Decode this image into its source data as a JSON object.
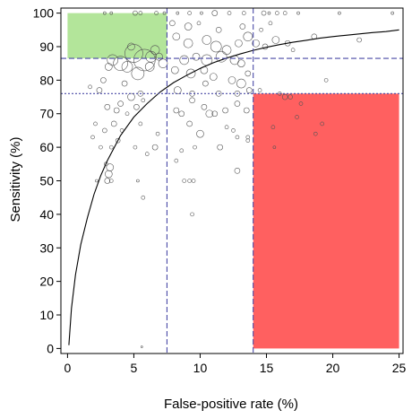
{
  "chart_data": {
    "type": "scatter",
    "title": "",
    "xlabel": "False-positive rate (%)",
    "ylabel": "Sensitivity (%)",
    "xlim": [
      0,
      25
    ],
    "ylim": [
      0,
      100
    ],
    "xticks": [
      0,
      5,
      10,
      15,
      20,
      25
    ],
    "yticks": [
      0,
      10,
      20,
      30,
      40,
      50,
      60,
      70,
      80,
      90,
      100
    ],
    "grid": false,
    "regions": [
      {
        "name": "green",
        "x": [
          0,
          7.5
        ],
        "y": [
          86.5,
          100
        ],
        "color": "#b3e59a"
      },
      {
        "name": "red",
        "x": [
          14,
          25
        ],
        "y": [
          0,
          76
        ],
        "color": "#ff6060"
      }
    ],
    "reference_lines": [
      {
        "orientation": "vertical",
        "value": 7.5,
        "color": "#4a4aa6",
        "style": "dashed"
      },
      {
        "orientation": "vertical",
        "value": 14,
        "color": "#4a4aa6",
        "style": "dashed"
      },
      {
        "orientation": "horizontal",
        "value": 86.5,
        "color": "#4a4aa6",
        "style": "dashed"
      },
      {
        "orientation": "horizontal",
        "value": 76,
        "color": "#4a4aa6",
        "style": "dotted"
      }
    ],
    "curve": {
      "color": "#000000",
      "x": [
        0.1,
        0.3,
        0.6,
        1,
        1.5,
        2,
        2.5,
        3,
        4,
        5,
        6,
        7,
        8,
        9,
        10,
        11,
        12,
        13,
        14,
        15,
        16,
        17,
        18,
        19,
        20,
        21,
        22,
        23,
        24,
        25
      ],
      "y": [
        1,
        12,
        22,
        31,
        39,
        46,
        51.5,
        56,
        63.5,
        69,
        73,
        76.5,
        79.3,
        81.5,
        83.5,
        85.2,
        86.6,
        87.8,
        88.9,
        89.8,
        90.6,
        91.3,
        91.9,
        92.5,
        93,
        93.4,
        93.8,
        94.2,
        94.5,
        95
      ]
    },
    "points": [
      {
        "x": 2.2,
        "y": 50,
        "s": 1.5
      },
      {
        "x": 2.5,
        "y": 60,
        "s": 2
      },
      {
        "x": 2.8,
        "y": 65,
        "s": 2.5
      },
      {
        "x": 3.0,
        "y": 50,
        "s": 3
      },
      {
        "x": 3.1,
        "y": 52,
        "s": 4
      },
      {
        "x": 3.3,
        "y": 60,
        "s": 2
      },
      {
        "x": 3.5,
        "y": 67,
        "s": 3
      },
      {
        "x": 3.0,
        "y": 72,
        "s": 3
      },
      {
        "x": 3.2,
        "y": 54,
        "s": 4
      },
      {
        "x": 2.4,
        "y": 77,
        "s": 3
      },
      {
        "x": 2.1,
        "y": 67,
        "s": 2
      },
      {
        "x": 1.9,
        "y": 63,
        "s": 2
      },
      {
        "x": 1.7,
        "y": 78,
        "s": 2
      },
      {
        "x": 2.7,
        "y": 80,
        "s": 3
      },
      {
        "x": 3.1,
        "y": 84,
        "s": 4
      },
      {
        "x": 3.4,
        "y": 86,
        "s": 6
      },
      {
        "x": 4.0,
        "y": 85,
        "s": 8
      },
      {
        "x": 4.5,
        "y": 84,
        "s": 6
      },
      {
        "x": 4.8,
        "y": 90,
        "s": 4
      },
      {
        "x": 5.0,
        "y": 88,
        "s": 10
      },
      {
        "x": 5.3,
        "y": 82,
        "s": 7
      },
      {
        "x": 5.8,
        "y": 86,
        "s": 12
      },
      {
        "x": 6.3,
        "y": 87,
        "s": 6
      },
      {
        "x": 6.6,
        "y": 89,
        "s": 5
      },
      {
        "x": 6.9,
        "y": 87,
        "s": 4
      },
      {
        "x": 7.2,
        "y": 85,
        "s": 5
      },
      {
        "x": 6.2,
        "y": 84,
        "s": 5
      },
      {
        "x": 5.5,
        "y": 76,
        "s": 3
      },
      {
        "x": 4.8,
        "y": 75,
        "s": 4
      },
      {
        "x": 4.3,
        "y": 79,
        "s": 3
      },
      {
        "x": 4.0,
        "y": 73,
        "s": 3
      },
      {
        "x": 3.7,
        "y": 71,
        "s": 3
      },
      {
        "x": 5.2,
        "y": 72,
        "s": 3
      },
      {
        "x": 5.7,
        "y": 74,
        "s": 2
      },
      {
        "x": 4.5,
        "y": 70,
        "s": 2
      },
      {
        "x": 4.1,
        "y": 65,
        "s": 2
      },
      {
        "x": 5.5,
        "y": 67,
        "s": 2
      },
      {
        "x": 5.1,
        "y": 60,
        "s": 2
      },
      {
        "x": 5.3,
        "y": 50,
        "s": 1.5
      },
      {
        "x": 5.7,
        "y": 45,
        "s": 2
      },
      {
        "x": 6.0,
        "y": 58,
        "s": 2
      },
      {
        "x": 6.6,
        "y": 60,
        "s": 3
      },
      {
        "x": 6.8,
        "y": 64,
        "s": 2
      },
      {
        "x": 5.6,
        "y": 0.5,
        "s": 1
      },
      {
        "x": 2.8,
        "y": 100,
        "s": 1.5
      },
      {
        "x": 3.3,
        "y": 100,
        "s": 1.5
      },
      {
        "x": 5.1,
        "y": 100,
        "s": 2.5
      },
      {
        "x": 5.5,
        "y": 100,
        "s": 2
      },
      {
        "x": 6.7,
        "y": 100,
        "s": 2
      },
      {
        "x": 7.3,
        "y": 100,
        "s": 1.5
      },
      {
        "x": 8.3,
        "y": 100,
        "s": 1.5
      },
      {
        "x": 9.2,
        "y": 100,
        "s": 2
      },
      {
        "x": 10.1,
        "y": 100,
        "s": 1.5
      },
      {
        "x": 11.1,
        "y": 100,
        "s": 3
      },
      {
        "x": 12.2,
        "y": 100,
        "s": 2
      },
      {
        "x": 13.3,
        "y": 100,
        "s": 2
      },
      {
        "x": 14.8,
        "y": 100,
        "s": 2.5
      },
      {
        "x": 15.2,
        "y": 100,
        "s": 1.5
      },
      {
        "x": 15.8,
        "y": 100,
        "s": 2
      },
      {
        "x": 16.4,
        "y": 100,
        "s": 2
      },
      {
        "x": 17.4,
        "y": 100,
        "s": 1.5
      },
      {
        "x": 20.5,
        "y": 100,
        "s": 1.5
      },
      {
        "x": 24.5,
        "y": 100,
        "s": 1.5
      },
      {
        "x": 7.9,
        "y": 97,
        "s": 3
      },
      {
        "x": 9.1,
        "y": 96,
        "s": 4
      },
      {
        "x": 9.9,
        "y": 97,
        "s": 2
      },
      {
        "x": 11.4,
        "y": 95,
        "s": 3
      },
      {
        "x": 13.2,
        "y": 96,
        "s": 3
      },
      {
        "x": 14.6,
        "y": 95,
        "s": 2
      },
      {
        "x": 15.3,
        "y": 97,
        "s": 2
      },
      {
        "x": 18.6,
        "y": 93,
        "s": 3
      },
      {
        "x": 22.0,
        "y": 92,
        "s": 2.5
      },
      {
        "x": 8.2,
        "y": 93,
        "s": 4
      },
      {
        "x": 9.1,
        "y": 91,
        "s": 5
      },
      {
        "x": 10.5,
        "y": 92,
        "s": 5
      },
      {
        "x": 11.2,
        "y": 90,
        "s": 6
      },
      {
        "x": 12.0,
        "y": 89,
        "s": 5
      },
      {
        "x": 12.9,
        "y": 91,
        "s": 4
      },
      {
        "x": 13.6,
        "y": 93,
        "s": 5
      },
      {
        "x": 14.2,
        "y": 91,
        "s": 4
      },
      {
        "x": 14.9,
        "y": 90,
        "s": 3
      },
      {
        "x": 15.7,
        "y": 92,
        "s": 4
      },
      {
        "x": 16.6,
        "y": 91,
        "s": 3
      },
      {
        "x": 17.0,
        "y": 89,
        "s": 2
      },
      {
        "x": 8.8,
        "y": 86,
        "s": 5
      },
      {
        "x": 9.7,
        "y": 87,
        "s": 4
      },
      {
        "x": 10.5,
        "y": 86,
        "s": 6
      },
      {
        "x": 11.6,
        "y": 87,
        "s": 6
      },
      {
        "x": 12.6,
        "y": 86,
        "s": 5
      },
      {
        "x": 13.1,
        "y": 85,
        "s": 4
      },
      {
        "x": 8.1,
        "y": 83,
        "s": 4
      },
      {
        "x": 9.3,
        "y": 82,
        "s": 5
      },
      {
        "x": 10.3,
        "y": 83,
        "s": 4
      },
      {
        "x": 11.0,
        "y": 81,
        "s": 4
      },
      {
        "x": 12.4,
        "y": 80,
        "s": 4
      },
      {
        "x": 13.1,
        "y": 79,
        "s": 5
      },
      {
        "x": 13.6,
        "y": 82,
        "s": 3
      },
      {
        "x": 8.3,
        "y": 77,
        "s": 4
      },
      {
        "x": 9.4,
        "y": 76,
        "s": 3
      },
      {
        "x": 10.4,
        "y": 79,
        "s": 3
      },
      {
        "x": 11.4,
        "y": 76,
        "s": 3
      },
      {
        "x": 12.8,
        "y": 76,
        "s": 3
      },
      {
        "x": 13.7,
        "y": 77,
        "s": 3
      },
      {
        "x": 9.4,
        "y": 74,
        "s": 3
      },
      {
        "x": 10.3,
        "y": 72,
        "s": 3
      },
      {
        "x": 10.7,
        "y": 70,
        "s": 4
      },
      {
        "x": 11.1,
        "y": 70,
        "s": 3
      },
      {
        "x": 11.9,
        "y": 71,
        "s": 3
      },
      {
        "x": 12.8,
        "y": 73,
        "s": 3
      },
      {
        "x": 13.5,
        "y": 71,
        "s": 3
      },
      {
        "x": 8.6,
        "y": 70,
        "s": 3
      },
      {
        "x": 8.2,
        "y": 71,
        "s": 3
      },
      {
        "x": 9.2,
        "y": 67,
        "s": 3
      },
      {
        "x": 10.0,
        "y": 64,
        "s": 4
      },
      {
        "x": 11.5,
        "y": 60,
        "s": 3
      },
      {
        "x": 12.0,
        "y": 66,
        "s": 2
      },
      {
        "x": 12.5,
        "y": 65,
        "s": 2
      },
      {
        "x": 12.8,
        "y": 63,
        "s": 2
      },
      {
        "x": 13.6,
        "y": 62,
        "s": 2
      },
      {
        "x": 9.6,
        "y": 60,
        "s": 2
      },
      {
        "x": 8.6,
        "y": 59,
        "s": 2
      },
      {
        "x": 8.2,
        "y": 56,
        "s": 2
      },
      {
        "x": 12.8,
        "y": 53,
        "s": 3
      },
      {
        "x": 8.8,
        "y": 50,
        "s": 2
      },
      {
        "x": 9.2,
        "y": 50,
        "s": 2
      },
      {
        "x": 9.5,
        "y": 50,
        "s": 2
      },
      {
        "x": 9.4,
        "y": 40,
        "s": 2
      },
      {
        "x": 13.6,
        "y": 63,
        "s": 2
      },
      {
        "x": 15.5,
        "y": 66,
        "s": 2
      },
      {
        "x": 16.4,
        "y": 75,
        "s": 3
      },
      {
        "x": 16.8,
        "y": 75,
        "s": 2.5
      },
      {
        "x": 17.3,
        "y": 69,
        "s": 2
      },
      {
        "x": 17.6,
        "y": 73,
        "s": 2
      },
      {
        "x": 18.7,
        "y": 64,
        "s": 2
      },
      {
        "x": 19.2,
        "y": 67,
        "s": 2
      },
      {
        "x": 19.5,
        "y": 80,
        "s": 2
      },
      {
        "x": 14.5,
        "y": 77,
        "s": 2
      },
      {
        "x": 16.0,
        "y": 76,
        "s": 2
      },
      {
        "x": 15.6,
        "y": 60,
        "s": 1.5
      },
      {
        "x": 3.3,
        "y": 50,
        "s": 2
      },
      {
        "x": 2.9,
        "y": 55,
        "s": 2
      },
      {
        "x": 3.8,
        "y": 62,
        "s": 2.5
      }
    ]
  }
}
